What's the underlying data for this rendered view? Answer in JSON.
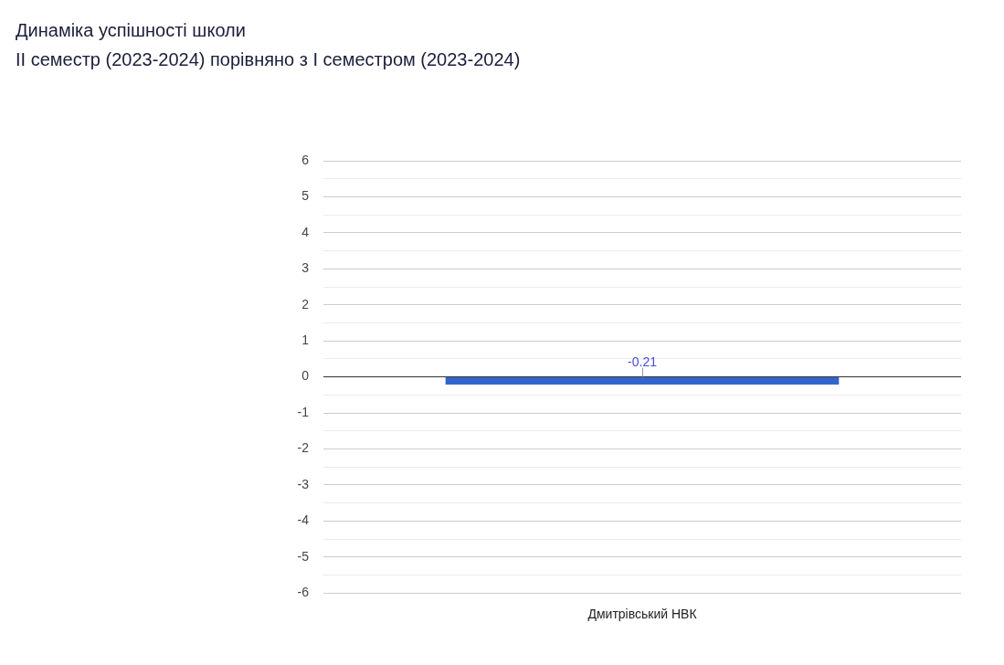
{
  "chart_data": {
    "type": "bar",
    "title": "Динаміка успішності школи",
    "subtitle": "ІІ семестр (2023-2024) порівняно з І семестром (2023-2024)",
    "categories": [
      "Дмитрівський НВК"
    ],
    "values": [
      -0.21
    ],
    "color": "#3366cc",
    "ylim": [
      -6,
      6
    ],
    "yticks": [
      -6,
      {
        "value": -5.5,
        "label": null
      },
      -5,
      {
        "value": -4.5,
        "label": null
      },
      -4,
      {
        "value": -3.5,
        "label": null
      },
      -3,
      {
        "value": -2.5,
        "label": null
      },
      -2,
      {
        "value": -1.5,
        "label": null
      },
      -1,
      {
        "value": -0.5,
        "label": null
      },
      0,
      {
        "value": 0.5,
        "label": null
      },
      1,
      {
        "value": 1.5,
        "label": null
      },
      2,
      {
        "value": 2.5,
        "label": null
      },
      3,
      {
        "value": 3.5,
        "label": null
      },
      4,
      {
        "value": 4.5,
        "label": null
      },
      5,
      {
        "value": 5.5,
        "label": null
      },
      6
    ],
    "grid": "y",
    "data_labels": true
  }
}
